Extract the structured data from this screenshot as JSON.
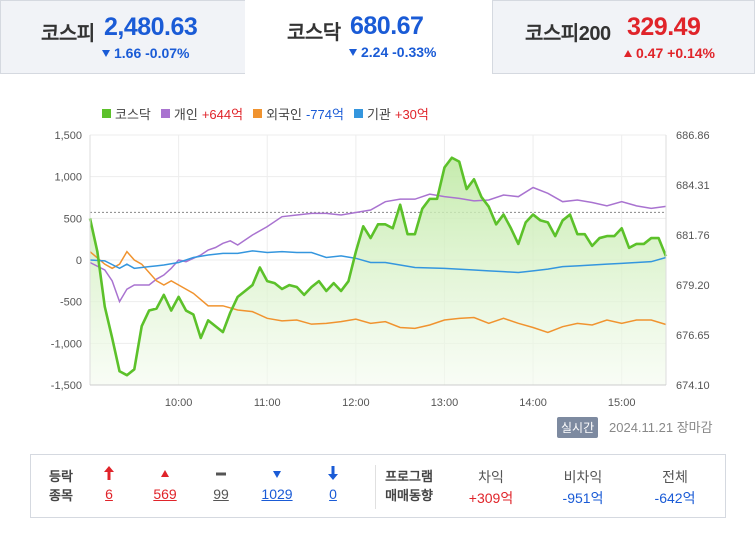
{
  "tabs": [
    {
      "name": "코스피",
      "value": "2,480.63",
      "change": "1.66 -0.07%",
      "dir": "down"
    },
    {
      "name": "코스닥",
      "value": "680.67",
      "change": "2.24 -0.33%",
      "dir": "down"
    },
    {
      "name": "코스피200",
      "value": "329.49",
      "change": "0.47 +0.14%",
      "dir": "up"
    }
  ],
  "legend": {
    "kosdaq": "코스닥",
    "individual": "개인",
    "individual_val": "+644억",
    "foreign": "외국인",
    "foreign_val": "-774억",
    "institution": "기관",
    "institution_val": "+30억"
  },
  "realtime_label": "실시간",
  "date_label": "2024.11.21 장마감",
  "bottom": {
    "label_line1": "등락",
    "label_line2": "종목",
    "counts": [
      {
        "icon": "up-limit-icon",
        "value": "6"
      },
      {
        "icon": "up-icon",
        "value": "569"
      },
      {
        "icon": "flat-icon",
        "value": "99"
      },
      {
        "icon": "down-icon",
        "value": "1029"
      },
      {
        "icon": "down-limit-icon",
        "value": "0"
      }
    ],
    "program_label1": "프로그램",
    "program_label2": "매매동향",
    "program": [
      {
        "head": "차익",
        "value": "+309억"
      },
      {
        "head": "비차익",
        "value": "-951억"
      },
      {
        "head": "전체",
        "value": "-642억"
      }
    ]
  },
  "colors": {
    "kosdaq": "#5cc12a",
    "individual": "#a973d0",
    "foreign": "#f0932f",
    "institution": "#3496de",
    "up": "#e0242a",
    "down": "#1a5bd6"
  },
  "chart_data": {
    "type": "line",
    "left_axis": {
      "ticks": [
        "1,500",
        "1,000",
        "500",
        "0",
        "-500",
        "-1,000",
        "-1,500"
      ],
      "ylim": [
        -1500,
        1500
      ]
    },
    "right_axis": {
      "ticks": [
        "686.86",
        "684.31",
        "681.76",
        "679.20",
        "676.65",
        "674.10"
      ],
      "ylim": [
        674.1,
        686.86
      ]
    },
    "x_ticks": [
      "10:00",
      "11:00",
      "12:00",
      "13:00",
      "14:00",
      "15:00"
    ],
    "x_unit": "minutes from 09:00",
    "xlim": [
      0,
      390
    ],
    "reference_close": 682.91,
    "kosdaq": {
      "x": [
        0,
        5,
        10,
        15,
        20,
        25,
        30,
        35,
        40,
        45,
        50,
        55,
        60,
        65,
        70,
        75,
        80,
        85,
        90,
        95,
        100,
        105,
        110,
        115,
        120,
        125,
        130,
        135,
        140,
        145,
        150,
        155,
        160,
        165,
        170,
        175,
        180,
        185,
        190,
        195,
        200,
        205,
        210,
        215,
        220,
        225,
        230,
        235,
        240,
        245,
        250,
        255,
        260,
        265,
        270,
        275,
        280,
        285,
        290,
        295,
        300,
        305,
        310,
        315,
        320,
        325,
        330,
        335,
        340,
        345,
        350,
        355,
        360,
        365,
        370,
        375,
        380,
        385,
        390
      ],
      "y": [
        682.6,
        680.9,
        678.1,
        676.5,
        674.8,
        674.6,
        674.9,
        677.1,
        677.9,
        678.0,
        678.7,
        677.9,
        678.6,
        677.9,
        677.7,
        676.5,
        677.4,
        677.1,
        676.8,
        677.8,
        678.6,
        678.9,
        679.2,
        680.1,
        679.4,
        679.3,
        679.0,
        679.2,
        679.1,
        678.7,
        679.1,
        679.4,
        678.9,
        679.3,
        678.9,
        679.4,
        680.9,
        682.2,
        681.6,
        682.3,
        682.3,
        682.1,
        683.3,
        681.8,
        681.8,
        683.1,
        683.6,
        683.6,
        685.2,
        685.7,
        685.5,
        684.1,
        684.6,
        683.7,
        683.2,
        682.3,
        682.8,
        682.1,
        681.3,
        682.4,
        682.8,
        682.5,
        682.4,
        681.7,
        682.5,
        682.8,
        681.8,
        681.8,
        681.2,
        681.6,
        681.7,
        681.7,
        682.1,
        681.1,
        681.3,
        681.3,
        681.6,
        681.6,
        680.67
      ]
    },
    "series": [
      {
        "name": "개인",
        "final": "+644억",
        "x": [
          0,
          10,
          15,
          20,
          25,
          30,
          40,
          45,
          50,
          55,
          60,
          65,
          70,
          75,
          80,
          85,
          90,
          95,
          100,
          110,
          120,
          130,
          140,
          150,
          160,
          170,
          180,
          190,
          200,
          210,
          220,
          230,
          240,
          250,
          260,
          270,
          280,
          290,
          300,
          310,
          320,
          330,
          340,
          350,
          360,
          370,
          380,
          390
        ],
        "y": [
          -30,
          -120,
          -250,
          -500,
          -350,
          -300,
          -300,
          -230,
          -180,
          -100,
          0,
          -20,
          20,
          60,
          120,
          150,
          200,
          230,
          180,
          300,
          400,
          520,
          540,
          560,
          560,
          540,
          570,
          600,
          700,
          730,
          730,
          790,
          760,
          740,
          710,
          720,
          780,
          760,
          870,
          800,
          700,
          720,
          690,
          650,
          700,
          650,
          620,
          644
        ]
      },
      {
        "name": "외국인",
        "final": "-774억",
        "x": [
          0,
          10,
          15,
          20,
          25,
          30,
          35,
          40,
          45,
          50,
          55,
          60,
          70,
          80,
          90,
          100,
          110,
          120,
          130,
          140,
          150,
          160,
          170,
          180,
          190,
          200,
          210,
          220,
          230,
          240,
          250,
          260,
          270,
          280,
          290,
          300,
          310,
          320,
          330,
          340,
          350,
          360,
          370,
          380,
          390
        ],
        "y": [
          100,
          -50,
          -100,
          -50,
          100,
          0,
          -50,
          -150,
          -250,
          -300,
          -250,
          -300,
          -400,
          -550,
          -550,
          -600,
          -620,
          -700,
          -730,
          -720,
          -770,
          -760,
          -740,
          -710,
          -760,
          -740,
          -810,
          -820,
          -780,
          -720,
          -700,
          -690,
          -760,
          -700,
          -760,
          -810,
          -870,
          -800,
          -760,
          -780,
          -720,
          -760,
          -720,
          -720,
          -774
        ]
      },
      {
        "name": "기관",
        "final": "+30억",
        "x": [
          0,
          10,
          20,
          25,
          30,
          40,
          45,
          50,
          60,
          70,
          80,
          90,
          100,
          110,
          120,
          130,
          140,
          150,
          160,
          170,
          180,
          190,
          200,
          220,
          240,
          260,
          270,
          280,
          290,
          300,
          310,
          320,
          330,
          340,
          350,
          360,
          370,
          380,
          390
        ],
        "y": [
          0,
          -10,
          -100,
          -50,
          -100,
          -80,
          -70,
          -60,
          -30,
          30,
          60,
          80,
          80,
          110,
          90,
          100,
          90,
          90,
          30,
          50,
          20,
          -30,
          -30,
          -90,
          -100,
          -120,
          -130,
          -140,
          -150,
          -130,
          -110,
          -80,
          -70,
          -60,
          -50,
          -40,
          -30,
          -20,
          30
        ]
      }
    ]
  }
}
